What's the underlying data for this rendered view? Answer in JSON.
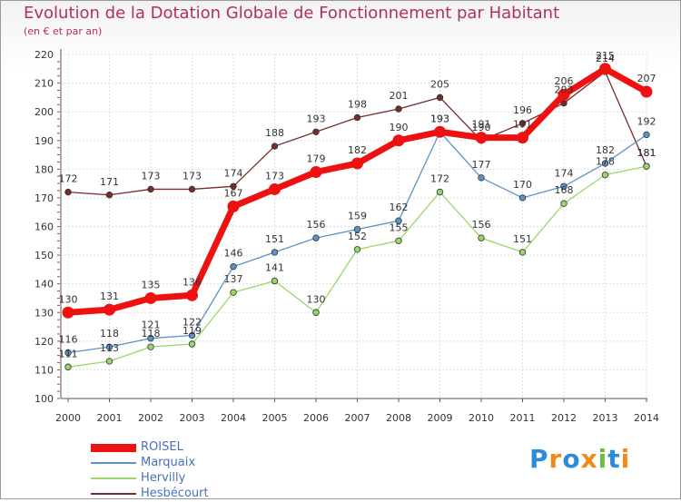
{
  "header": {
    "title": "Evolution de la Dotation Globale de Fonctionnement par Habitant",
    "subtitle": "(en € et par an)"
  },
  "logo": {
    "text": "Proxiti",
    "colors": [
      "#2e8bd8",
      "#f08a1c",
      "#2e8bd8",
      "#f08a1c",
      "#6abf3a",
      "#2e8bd8",
      "#f08a1c"
    ]
  },
  "chart_data": {
    "type": "line",
    "title": "Evolution de la Dotation Globale de Fonctionnement par Habitant",
    "subtitle": "(en € et par an)",
    "xlabel": "",
    "ylabel": "",
    "ylim": [
      100,
      220
    ],
    "yticks": [
      100,
      110,
      120,
      130,
      140,
      150,
      160,
      170,
      180,
      190,
      200,
      210,
      220
    ],
    "grid": true,
    "legend_position": "bottom-left",
    "categories": [
      "2000",
      "2001",
      "2002",
      "2003",
      "2004",
      "2005",
      "2006",
      "2007",
      "2008",
      "2009",
      "2010",
      "2011",
      "2012",
      "2013",
      "2014"
    ],
    "series": [
      {
        "name": "Hesbécourt",
        "color": "#7a2a2a",
        "values": [
          172,
          171,
          173,
          173,
          174,
          188,
          193,
          198,
          201,
          205,
          190,
          196,
          203,
          214,
          181
        ],
        "labels": [
          "172",
          "171",
          "173",
          "173",
          "174",
          "188",
          "193",
          "198",
          "201",
          "205",
          "190",
          "196",
          "203",
          "214",
          "181"
        ]
      },
      {
        "name": "Hervilly",
        "color": "#99d66a",
        "values": [
          111,
          113,
          118,
          119,
          137,
          141,
          130,
          152,
          155,
          172,
          156,
          151,
          168,
          178,
          181
        ],
        "labels": [
          "111",
          "113",
          "118",
          "119",
          "137",
          "141",
          "130",
          "152",
          "155",
          "172",
          "156",
          "151",
          "168",
          "178",
          "181"
        ]
      },
      {
        "name": "Marquaix",
        "color": "#5b93c8",
        "values": [
          116,
          118,
          121,
          122,
          146,
          151,
          156,
          159,
          162,
          193,
          177,
          170,
          174,
          182,
          192
        ],
        "labels": [
          "116",
          "118",
          "121",
          "122",
          "146",
          "151",
          "156",
          "159",
          "162",
          "193",
          "177",
          "170",
          "174",
          "182",
          "192"
        ]
      },
      {
        "name": "ROISEL",
        "color": "#ee1111",
        "values": [
          130,
          131,
          135,
          136,
          167,
          173,
          179,
          182,
          190,
          193,
          191,
          191,
          206,
          215,
          207
        ],
        "labels": [
          "130",
          "131",
          "135",
          "136",
          "167",
          "173",
          "179",
          "182",
          "190",
          "193",
          "191",
          "191",
          "206",
          "215",
          "207"
        ]
      }
    ],
    "legend_order": [
      "ROISEL",
      "Marquaix",
      "Hervilly",
      "Hesbécourt"
    ]
  }
}
